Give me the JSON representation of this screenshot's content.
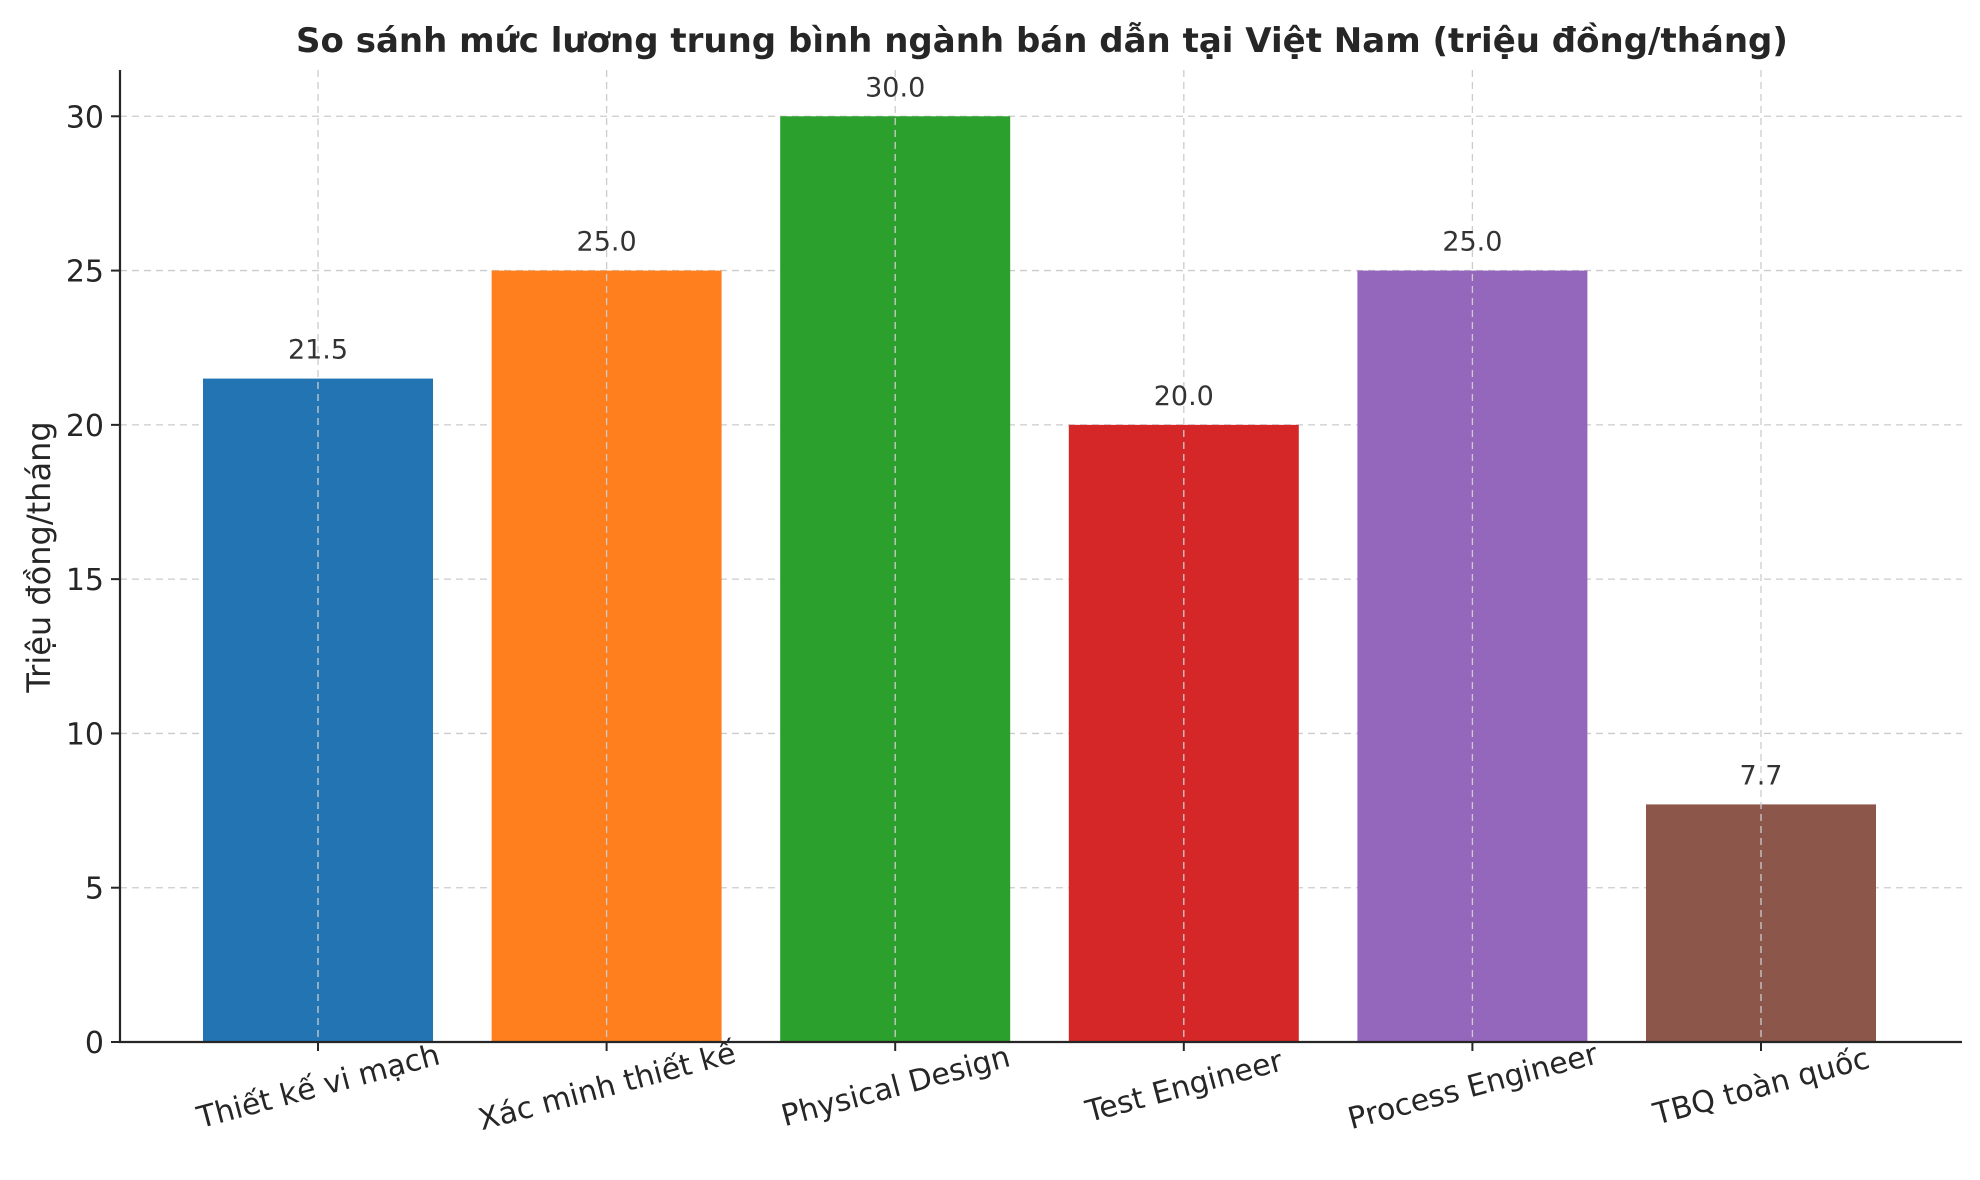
{
  "chart_data": {
    "type": "bar",
    "title": "So sánh mức lương trung bình ngành bán dẫn tại Việt Nam (triệu đồng/tháng)",
    "xlabel": "",
    "ylabel": "Triệu đồng/tháng",
    "categories": [
      "Thiết kế vi mạch",
      "Xác minh thiết kế",
      "Physical Design",
      "Test Engineer",
      "Process Engineer",
      "TBQ toàn quốc"
    ],
    "values": [
      21.5,
      25.0,
      30.0,
      20.0,
      25.0,
      7.7
    ],
    "value_labels": [
      "21.5",
      "25.0",
      "30.0",
      "20.0",
      "25.0",
      "7.7"
    ],
    "colors": [
      "#2274b3",
      "#ff7f1e",
      "#2ca02c",
      "#d62728",
      "#9467bd",
      "#8c564b"
    ],
    "ylim": [
      0,
      31.5
    ],
    "yticks": [
      0,
      5,
      10,
      15,
      20,
      25,
      30
    ],
    "grid": true,
    "grid_style": "dashed",
    "xtick_rotation_deg": 15
  }
}
